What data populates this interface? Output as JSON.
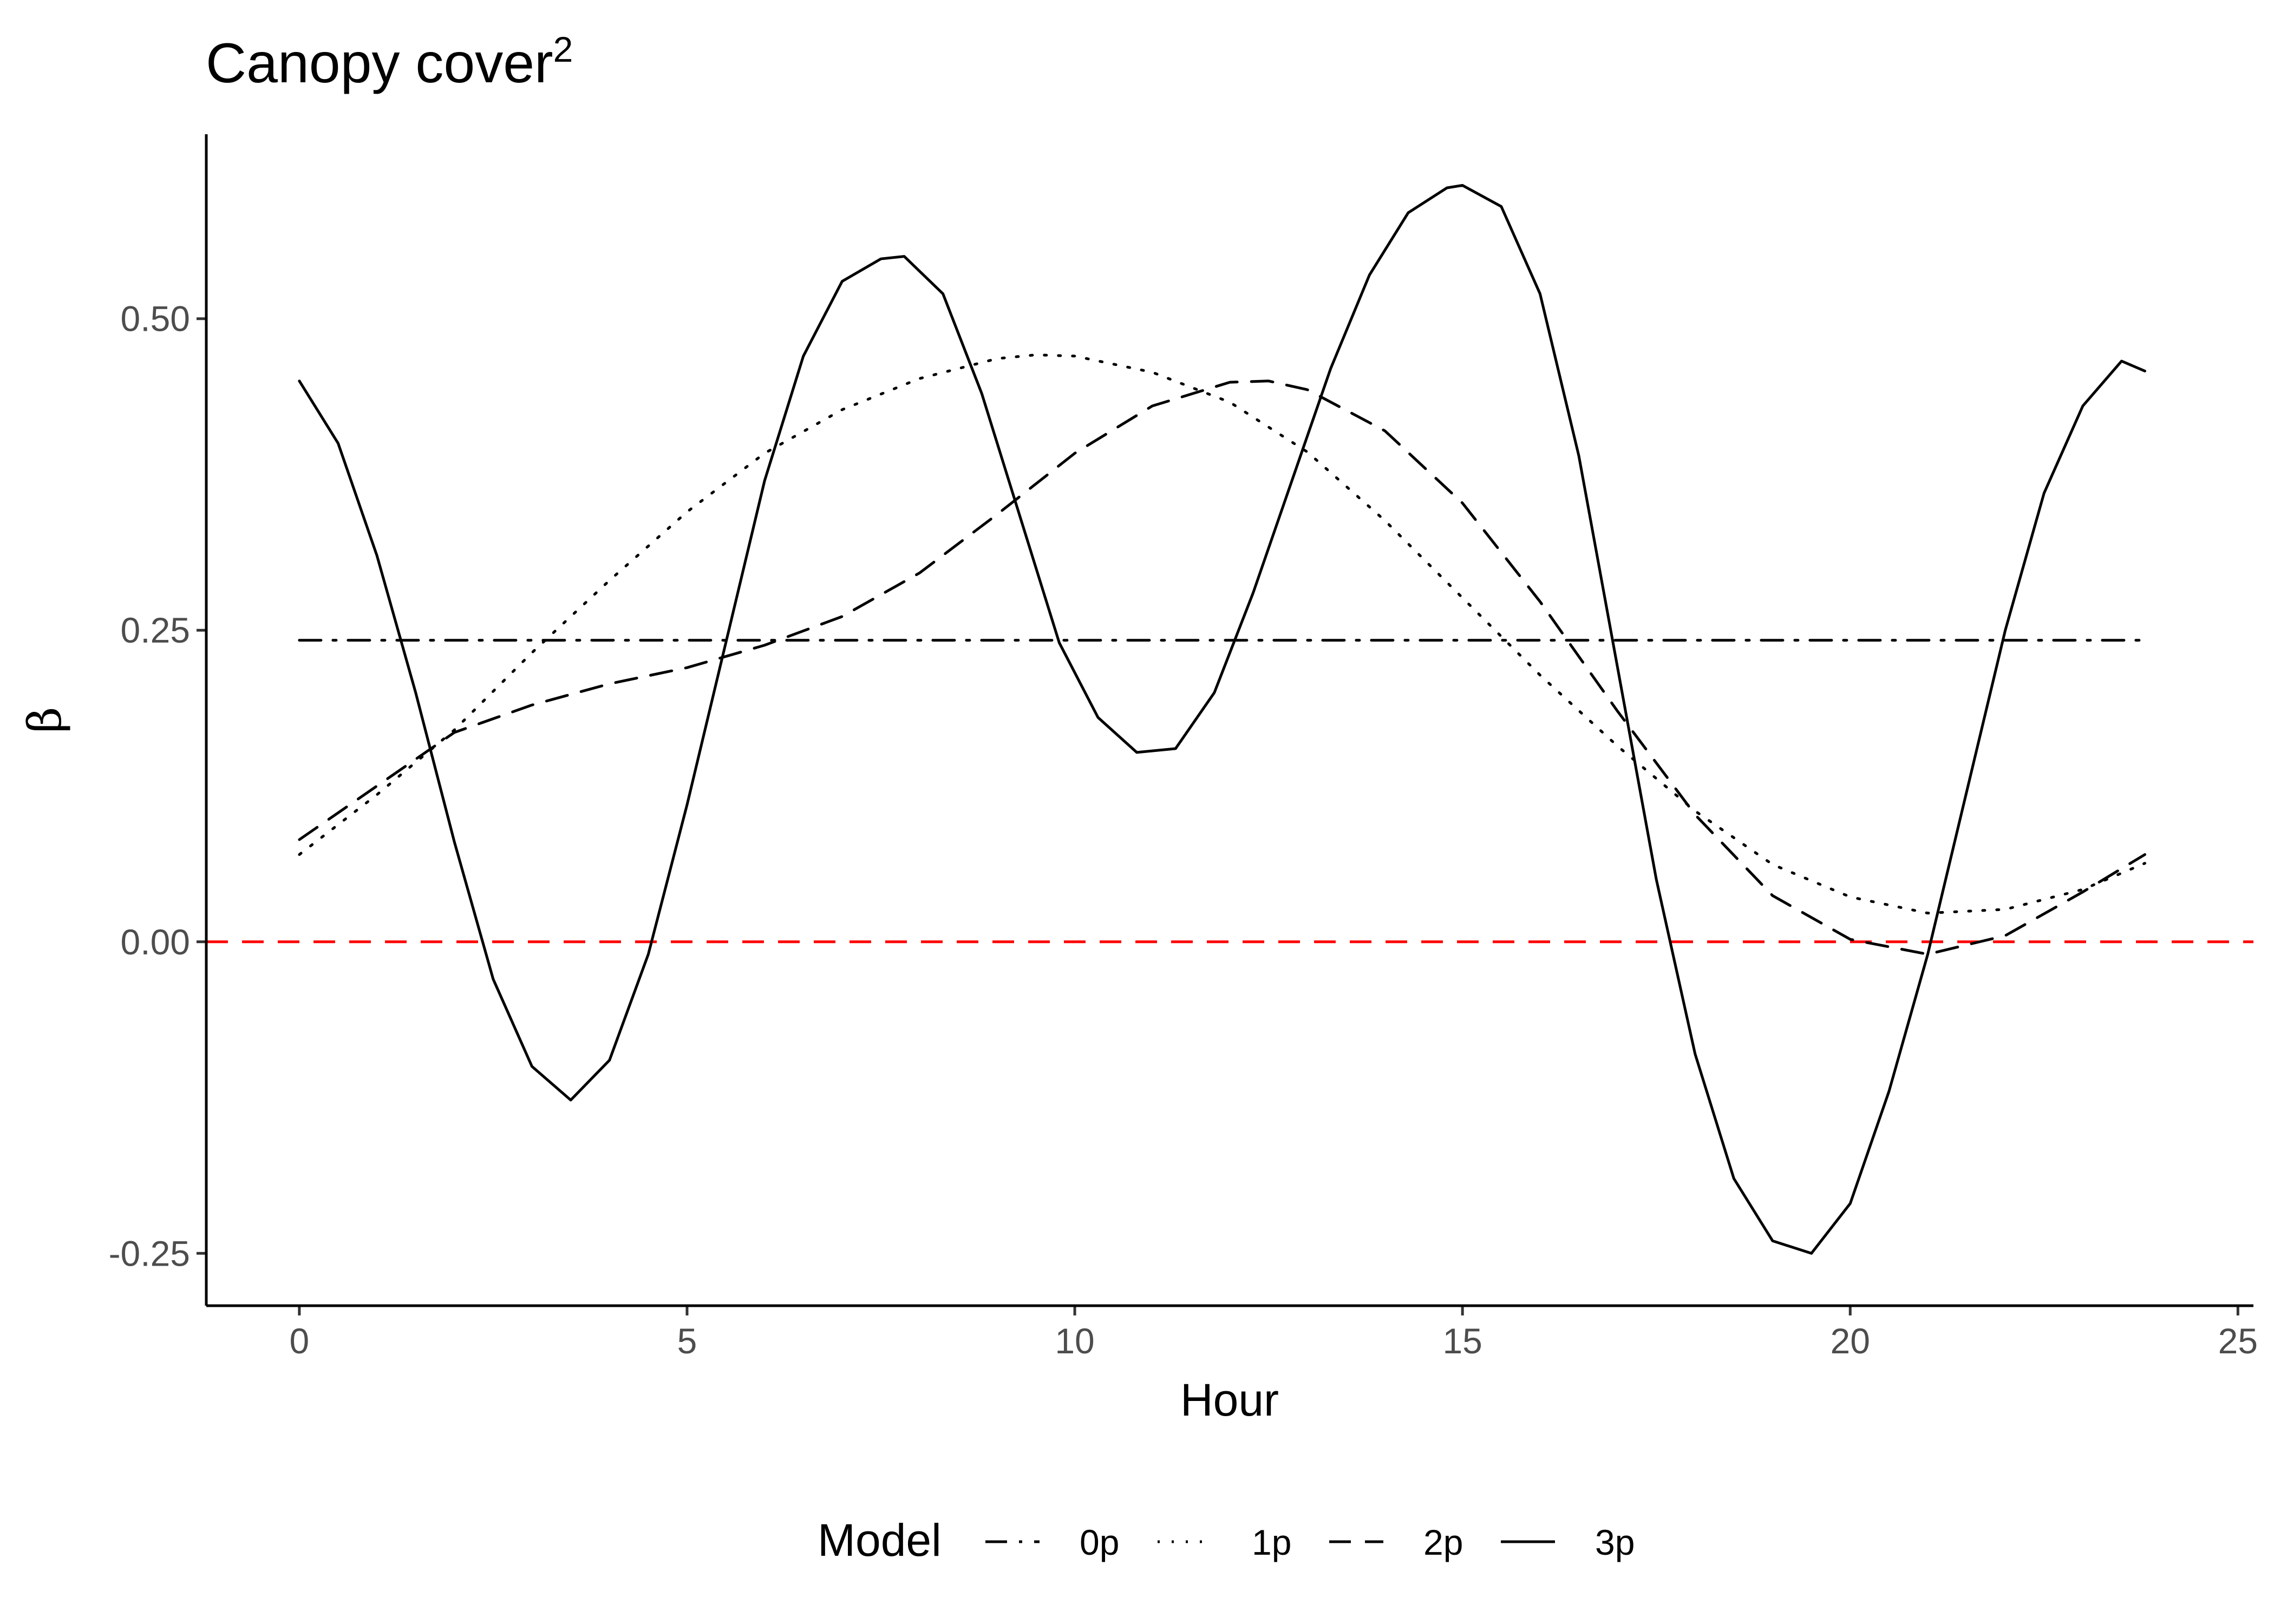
{
  "chart_data": {
    "type": "line",
    "title": "Canopy cover",
    "title_superscript": "2",
    "xlabel": "Hour",
    "ylabel": "β",
    "xlim": [
      -1.2,
      25.2
    ],
    "ylim": [
      -0.292,
      0.648
    ],
    "x_ticks": [
      0,
      5,
      10,
      15,
      20,
      25
    ],
    "x_tick_labels": [
      "0",
      "5",
      "10",
      "15",
      "20",
      "25"
    ],
    "y_ticks": [
      -0.25,
      0.0,
      0.25,
      0.5
    ],
    "y_tick_labels": [
      "-0.25",
      "0.00",
      "0.25",
      "0.50"
    ],
    "grid": false,
    "legend_position": "bottom",
    "legend_title": "Model",
    "reference_line": {
      "y": 0,
      "color": "#ff0000",
      "style": "dashed"
    },
    "series": [
      {
        "name": "0p",
        "style": "dashdot",
        "color": "#000000",
        "x": [
          0,
          23.8
        ],
        "y": [
          0.242,
          0.242
        ]
      },
      {
        "name": "1p",
        "style": "dotted",
        "color": "#000000",
        "x": [
          0,
          1,
          2,
          3,
          4,
          5,
          6,
          7,
          8,
          9,
          9.5,
          10,
          11,
          12,
          13,
          14,
          15,
          16,
          17,
          18,
          19,
          20,
          21,
          22,
          23,
          23.8
        ],
        "y": [
          0.07,
          0.118,
          0.17,
          0.232,
          0.29,
          0.345,
          0.392,
          0.427,
          0.452,
          0.468,
          0.471,
          0.47,
          0.457,
          0.433,
          0.393,
          0.338,
          0.276,
          0.214,
          0.157,
          0.105,
          0.062,
          0.036,
          0.023,
          0.026,
          0.042,
          0.063
        ]
      },
      {
        "name": "2p",
        "style": "dashed",
        "color": "#000000",
        "x": [
          0,
          1,
          2,
          3,
          4,
          5,
          6,
          7,
          8,
          9,
          10,
          11,
          12,
          12.5,
          13,
          14,
          15,
          16,
          17,
          18,
          19,
          20,
          21,
          22,
          23,
          23.8
        ],
        "y": [
          0.082,
          0.125,
          0.168,
          0.19,
          0.207,
          0.22,
          0.238,
          0.261,
          0.296,
          0.343,
          0.392,
          0.43,
          0.449,
          0.45,
          0.443,
          0.41,
          0.352,
          0.273,
          0.185,
          0.102,
          0.037,
          0.002,
          -0.01,
          0.005,
          0.04,
          0.07
        ]
      },
      {
        "name": "3p",
        "style": "solid",
        "color": "#000000",
        "x": [
          0,
          0.5,
          1,
          1.5,
          2,
          2.5,
          3,
          3.5,
          4,
          4.5,
          5,
          5.5,
          6,
          6.5,
          7,
          7.5,
          7.8,
          8.3,
          8.8,
          9.3,
          9.8,
          10.3,
          10.8,
          11.3,
          11.8,
          12.3,
          12.8,
          13.3,
          13.8,
          14.3,
          14.8,
          15,
          15.5,
          16,
          16.5,
          17,
          17.5,
          18,
          18.5,
          19,
          19.5,
          20,
          20.5,
          21,
          21.5,
          22,
          22.5,
          23,
          23.5,
          23.8
        ],
        "y": [
          0.45,
          0.4,
          0.31,
          0.2,
          0.08,
          -0.03,
          -0.1,
          -0.127,
          -0.095,
          -0.01,
          0.11,
          0.24,
          0.37,
          0.47,
          0.53,
          0.548,
          0.55,
          0.52,
          0.44,
          0.34,
          0.24,
          0.18,
          0.152,
          0.155,
          0.2,
          0.28,
          0.37,
          0.46,
          0.535,
          0.585,
          0.605,
          0.607,
          0.59,
          0.52,
          0.39,
          0.22,
          0.05,
          -0.09,
          -0.19,
          -0.24,
          -0.25,
          -0.21,
          -0.12,
          -0.01,
          0.12,
          0.25,
          0.36,
          0.43,
          0.466,
          0.458
        ]
      }
    ]
  }
}
